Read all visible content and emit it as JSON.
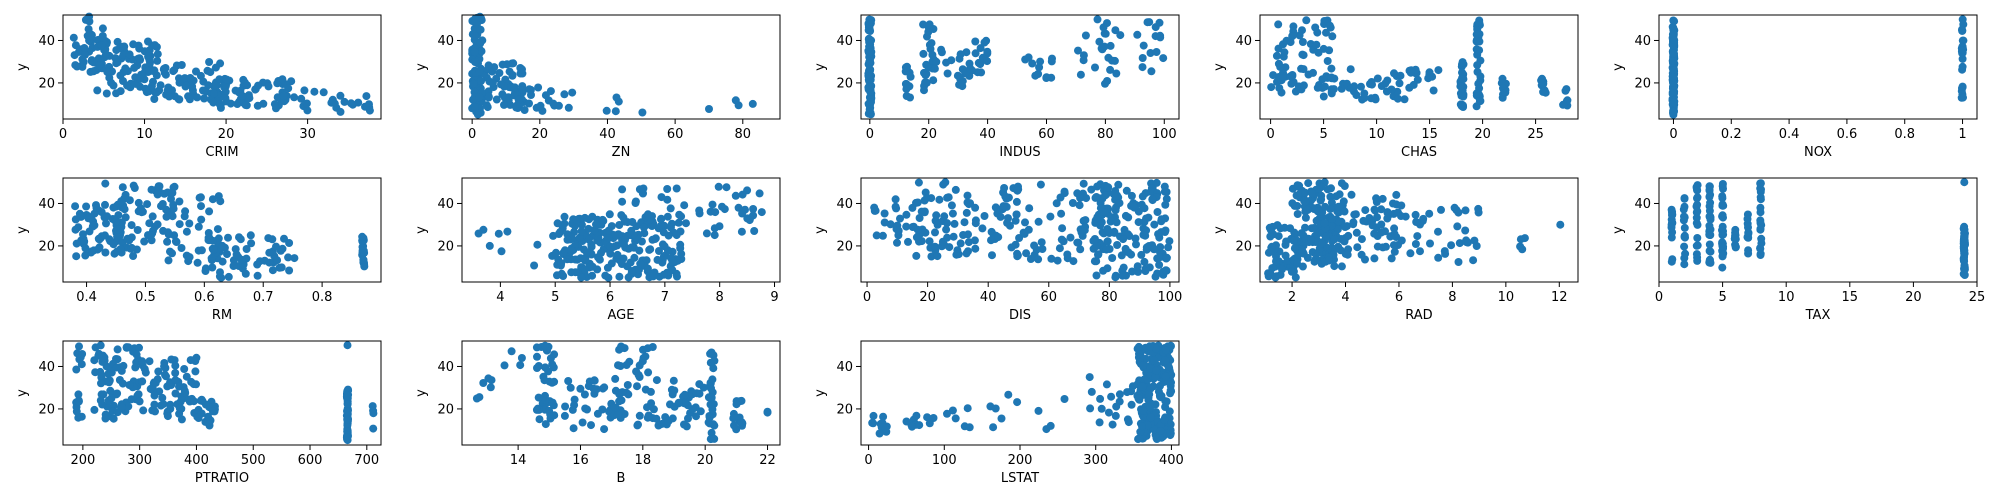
{
  "colors": {
    "marker": "#1f77b4",
    "frame": "#000000",
    "background": "#ffffff"
  },
  "chart_data": [
    {
      "type": "scatter",
      "xlabel": "CRIM",
      "ylabel": "y",
      "xticks": [
        0,
        10,
        20,
        30
      ],
      "yticks": [
        20,
        40
      ],
      "xlim": [
        0,
        39
      ],
      "ylim": [
        3,
        52
      ],
      "grid": false,
      "clusters": [
        {
          "x": [
            1,
            5
          ],
          "y": [
            25,
            52
          ],
          "n": 45
        },
        {
          "x": [
            4,
            12
          ],
          "y": [
            15,
            40
          ],
          "n": 80
        },
        {
          "x": [
            10,
            20
          ],
          "y": [
            12,
            30
          ],
          "n": 70
        },
        {
          "x": [
            18,
            28
          ],
          "y": [
            8,
            22
          ],
          "n": 60
        },
        {
          "x": [
            26,
            38
          ],
          "y": [
            5,
            18
          ],
          "n": 25
        }
      ]
    },
    {
      "type": "scatter",
      "xlabel": "ZN",
      "ylabel": "y",
      "xticks": [
        0,
        20,
        40,
        60,
        80
      ],
      "yticks": [
        20,
        40
      ],
      "xlim": [
        -3,
        91
      ],
      "ylim": [
        3,
        52
      ],
      "grid": false,
      "clusters": [
        {
          "x": [
            0,
            3
          ],
          "y": [
            5,
            52
          ],
          "n": 90
        },
        {
          "x": [
            2,
            15
          ],
          "y": [
            8,
            30
          ],
          "n": 60
        },
        {
          "x": [
            12,
            30
          ],
          "y": [
            6,
            18
          ],
          "n": 25
        },
        {
          "x": [
            38,
            52
          ],
          "y": [
            5,
            14
          ],
          "n": 5
        },
        {
          "x": [
            66,
            88
          ],
          "y": [
            5,
            12
          ],
          "n": 4
        }
      ]
    },
    {
      "type": "scatter",
      "xlabel": "INDUS",
      "ylabel": "y",
      "xticks": [
        0,
        20,
        40,
        60,
        80,
        100
      ],
      "yticks": [
        20,
        40
      ],
      "xlim": [
        -3,
        105
      ],
      "ylim": [
        3,
        52
      ],
      "grid": false,
      "clusters": [
        {
          "x": [
            -0.5,
            0.5
          ],
          "y": [
            5,
            50
          ],
          "n": 90
        },
        {
          "x": [
            12,
            14
          ],
          "y": [
            12,
            28
          ],
          "n": 12
        },
        {
          "x": [
            18,
            22
          ],
          "y": [
            15,
            50
          ],
          "n": 25
        },
        {
          "x": [
            22,
            40
          ],
          "y": [
            18,
            40
          ],
          "n": 35
        },
        {
          "x": [
            52,
            62
          ],
          "y": [
            20,
            33
          ],
          "n": 12
        },
        {
          "x": [
            70,
            86
          ],
          "y": [
            18,
            50
          ],
          "n": 25
        },
        {
          "x": [
            90,
            100
          ],
          "y": [
            25,
            50
          ],
          "n": 15
        }
      ]
    },
    {
      "type": "scatter",
      "xlabel": "CHAS",
      "ylabel": "y",
      "xticks": [
        0,
        5,
        10,
        15,
        20,
        25
      ],
      "yticks": [
        20,
        40
      ],
      "xlim": [
        -1,
        29
      ],
      "ylim": [
        3,
        52
      ],
      "grid": false,
      "clusters": [
        {
          "x": [
            0,
            6
          ],
          "y": [
            15,
            50
          ],
          "n": 70
        },
        {
          "x": [
            5,
            13
          ],
          "y": [
            12,
            28
          ],
          "n": 40
        },
        {
          "x": [
            13,
            16
          ],
          "y": [
            16,
            30
          ],
          "n": 15
        },
        {
          "x": [
            17.9,
            18.2
          ],
          "y": [
            5,
            30
          ],
          "n": 30
        },
        {
          "x": [
            19.4,
            19.8
          ],
          "y": [
            8,
            50
          ],
          "n": 30
        },
        {
          "x": [
            21.8,
            22.2
          ],
          "y": [
            12,
            22
          ],
          "n": 8
        },
        {
          "x": [
            25.5,
            26
          ],
          "y": [
            15,
            22
          ],
          "n": 8
        },
        {
          "x": [
            27.5,
            28
          ],
          "y": [
            8,
            20
          ],
          "n": 6
        }
      ]
    },
    {
      "type": "scatter",
      "xlabel": "NOX",
      "ylabel": "y",
      "xticks": [
        0.0,
        0.2,
        0.4,
        0.6,
        0.8,
        1.0
      ],
      "yticks": [
        20,
        40
      ],
      "xlim": [
        -0.05,
        1.05
      ],
      "ylim": [
        3,
        52
      ],
      "grid": false,
      "clusters": [
        {
          "x": [
            -0.003,
            0.003
          ],
          "y": [
            5,
            50
          ],
          "n": 120
        },
        {
          "x": [
            0.997,
            1.003
          ],
          "y": [
            12,
            50
          ],
          "n": 25
        }
      ]
    },
    {
      "type": "scatter",
      "xlabel": "RM",
      "ylabel": "y",
      "xticks": [
        0.4,
        0.5,
        0.6,
        0.7,
        0.8
      ],
      "yticks": [
        20,
        40
      ],
      "xlim": [
        0.36,
        0.9
      ],
      "ylim": [
        3,
        52
      ],
      "grid": false,
      "clusters": [
        {
          "x": [
            0.38,
            0.46
          ],
          "y": [
            15,
            40
          ],
          "n": 60
        },
        {
          "x": [
            0.43,
            0.55
          ],
          "y": [
            15,
            50
          ],
          "n": 70
        },
        {
          "x": [
            0.53,
            0.63
          ],
          "y": [
            10,
            50
          ],
          "n": 40
        },
        {
          "x": [
            0.6,
            0.7
          ],
          "y": [
            5,
            25
          ],
          "n": 45
        },
        {
          "x": [
            0.7,
            0.76
          ],
          "y": [
            8,
            25
          ],
          "n": 20
        },
        {
          "x": [
            0.868,
            0.872
          ],
          "y": [
            10,
            25
          ],
          "n": 20
        }
      ]
    },
    {
      "type": "scatter",
      "xlabel": "AGE",
      "ylabel": "y",
      "xticks": [
        4,
        5,
        6,
        7,
        8,
        9
      ],
      "yticks": [
        20,
        40
      ],
      "xlim": [
        3.3,
        9.1
      ],
      "ylim": [
        3,
        52
      ],
      "grid": false,
      "trend": [
        [
          5,
          9
        ],
        [
          7.3,
          32
        ],
        8
      ],
      "clusters": [
        {
          "x": [
            3.5,
            5
          ],
          "y": [
            8,
            28
          ],
          "n": 10
        },
        {
          "x": [
            5,
            7.3
          ],
          "y": [
            5,
            35
          ],
          "n": 230
        },
        {
          "x": [
            6.8,
            8.8
          ],
          "y": [
            25,
            50
          ],
          "n": 40
        },
        {
          "x": [
            6.2,
            6.8
          ],
          "y": [
            40,
            50
          ],
          "n": 8
        }
      ]
    },
    {
      "type": "scatter",
      "xlabel": "DIS",
      "ylabel": "y",
      "xticks": [
        0,
        20,
        40,
        60,
        80,
        100
      ],
      "yticks": [
        20,
        40
      ],
      "xlim": [
        -2,
        103
      ],
      "ylim": [
        3,
        52
      ],
      "grid": false,
      "clusters": [
        {
          "x": [
            2,
            20
          ],
          "y": [
            20,
            45
          ],
          "n": 30
        },
        {
          "x": [
            15,
            50
          ],
          "y": [
            15,
            50
          ],
          "n": 90
        },
        {
          "x": [
            45,
            80
          ],
          "y": [
            12,
            50
          ],
          "n": 80
        },
        {
          "x": [
            75,
            100
          ],
          "y": [
            5,
            50
          ],
          "n": 150
        }
      ]
    },
    {
      "type": "scatter",
      "xlabel": "RAD",
      "ylabel": "y",
      "xticks": [
        2,
        4,
        6,
        8,
        10,
        12
      ],
      "yticks": [
        20,
        40
      ],
      "xlim": [
        0.8,
        12.7
      ],
      "ylim": [
        3,
        52
      ],
      "grid": false,
      "clusters": [
        {
          "x": [
            1.1,
            2.5
          ],
          "y": [
            5,
            30
          ],
          "n": 60
        },
        {
          "x": [
            2,
            4
          ],
          "y": [
            10,
            50
          ],
          "n": 130
        },
        {
          "x": [
            3,
            6
          ],
          "y": [
            12,
            45
          ],
          "n": 80
        },
        {
          "x": [
            5,
            9
          ],
          "y": [
            12,
            40
          ],
          "n": 50
        },
        {
          "x": [
            10.4,
            10.8
          ],
          "y": [
            18,
            24
          ],
          "n": 4
        },
        {
          "x": [
            12,
            12.1
          ],
          "y": [
            30,
            30
          ],
          "n": 1
        }
      ]
    },
    {
      "type": "scatter",
      "xlabel": "TAX",
      "ylabel": "y",
      "xticks": [
        0,
        5,
        10,
        15,
        20,
        25
      ],
      "yticks": [
        20,
        40
      ],
      "xlim": [
        0,
        25
      ],
      "ylim": [
        3,
        52
      ],
      "grid": false,
      "clusters": [
        {
          "x": [
            0.95,
            1.05
          ],
          "y": [
            12,
            38
          ],
          "n": 15
        },
        {
          "x": [
            1.95,
            2.05
          ],
          "y": [
            10,
            45
          ],
          "n": 15
        },
        {
          "x": [
            2.95,
            3.05
          ],
          "y": [
            8,
            50
          ],
          "n": 20
        },
        {
          "x": [
            3.95,
            4.05
          ],
          "y": [
            8,
            50
          ],
          "n": 30
        },
        {
          "x": [
            4.95,
            5.05
          ],
          "y": [
            8,
            50
          ],
          "n": 30
        },
        {
          "x": [
            5.95,
            6.05
          ],
          "y": [
            15,
            28
          ],
          "n": 10
        },
        {
          "x": [
            6.95,
            7.05
          ],
          "y": [
            15,
            35
          ],
          "n": 12
        },
        {
          "x": [
            7.95,
            8.05
          ],
          "y": [
            15,
            50
          ],
          "n": 20
        },
        {
          "x": [
            23.95,
            24.05
          ],
          "y": [
            5,
            30
          ],
          "n": 50
        },
        {
          "x": [
            24,
            24
          ],
          "y": [
            50,
            50
          ],
          "n": 1
        }
      ]
    },
    {
      "type": "scatter",
      "xlabel": "PTRATIO",
      "ylabel": "y",
      "xticks": [
        200,
        300,
        400,
        500,
        600,
        700
      ],
      "yticks": [
        20,
        40
      ],
      "xlim": [
        165,
        725
      ],
      "ylim": [
        3,
        52
      ],
      "grid": false,
      "clusters": [
        {
          "x": [
            187,
            200
          ],
          "y": [
            15,
            50
          ],
          "n": 15
        },
        {
          "x": [
            220,
            300
          ],
          "y": [
            15,
            50
          ],
          "n": 80
        },
        {
          "x": [
            300,
            400
          ],
          "y": [
            15,
            45
          ],
          "n": 70
        },
        {
          "x": [
            400,
            440
          ],
          "y": [
            12,
            25
          ],
          "n": 20
        },
        {
          "x": [
            665,
            667
          ],
          "y": [
            5,
            30
          ],
          "n": 50
        },
        {
          "x": [
            666,
            666
          ],
          "y": [
            50,
            50
          ],
          "n": 1
        },
        {
          "x": [
            710,
            712
          ],
          "y": [
            10,
            22
          ],
          "n": 4
        }
      ]
    },
    {
      "type": "scatter",
      "xlabel": "B",
      "ylabel": "y",
      "xticks": [
        14,
        16,
        18,
        20,
        22
      ],
      "yticks": [
        20,
        40
      ],
      "xlim": [
        12.2,
        22.4
      ],
      "ylim": [
        3,
        52
      ],
      "grid": false,
      "clusters": [
        {
          "x": [
            12.6,
            13.2
          ],
          "y": [
            22,
            38
          ],
          "n": 6
        },
        {
          "x": [
            13.5,
            14.2
          ],
          "y": [
            35,
            50
          ],
          "n": 4
        },
        {
          "x": [
            14.6,
            15.2
          ],
          "y": [
            12,
            50
          ],
          "n": 40
        },
        {
          "x": [
            15.5,
            17.0
          ],
          "y": [
            10,
            35
          ],
          "n": 30
        },
        {
          "x": [
            17,
            18.4
          ],
          "y": [
            12,
            50
          ],
          "n": 50
        },
        {
          "x": [
            18.4,
            20
          ],
          "y": [
            10,
            35
          ],
          "n": 40
        },
        {
          "x": [
            20.1,
            20.3
          ],
          "y": [
            5,
            50
          ],
          "n": 30
        },
        {
          "x": [
            20.9,
            21.2
          ],
          "y": [
            10,
            25
          ],
          "n": 15
        },
        {
          "x": [
            22,
            22
          ],
          "y": [
            18,
            21
          ],
          "n": 2
        }
      ]
    },
    {
      "type": "scatter",
      "xlabel": "LSTAT",
      "ylabel": "y",
      "xticks": [
        0,
        100,
        200,
        300,
        400
      ],
      "yticks": [
        20,
        40
      ],
      "xlim": [
        -10,
        410
      ],
      "ylim": [
        3,
        52
      ],
      "grid": false,
      "clusters": [
        {
          "x": [
            0,
            25
          ],
          "y": [
            8,
            17
          ],
          "n": 12
        },
        {
          "x": [
            50,
            130
          ],
          "y": [
            8,
            20
          ],
          "n": 15
        },
        {
          "x": [
            130,
            260
          ],
          "y": [
            10,
            28
          ],
          "n": 12
        },
        {
          "x": [
            290,
            370
          ],
          "y": [
            8,
            35
          ],
          "n": 25
        },
        {
          "x": [
            355,
            400
          ],
          "y": [
            5,
            50
          ],
          "n": 200
        }
      ]
    }
  ]
}
